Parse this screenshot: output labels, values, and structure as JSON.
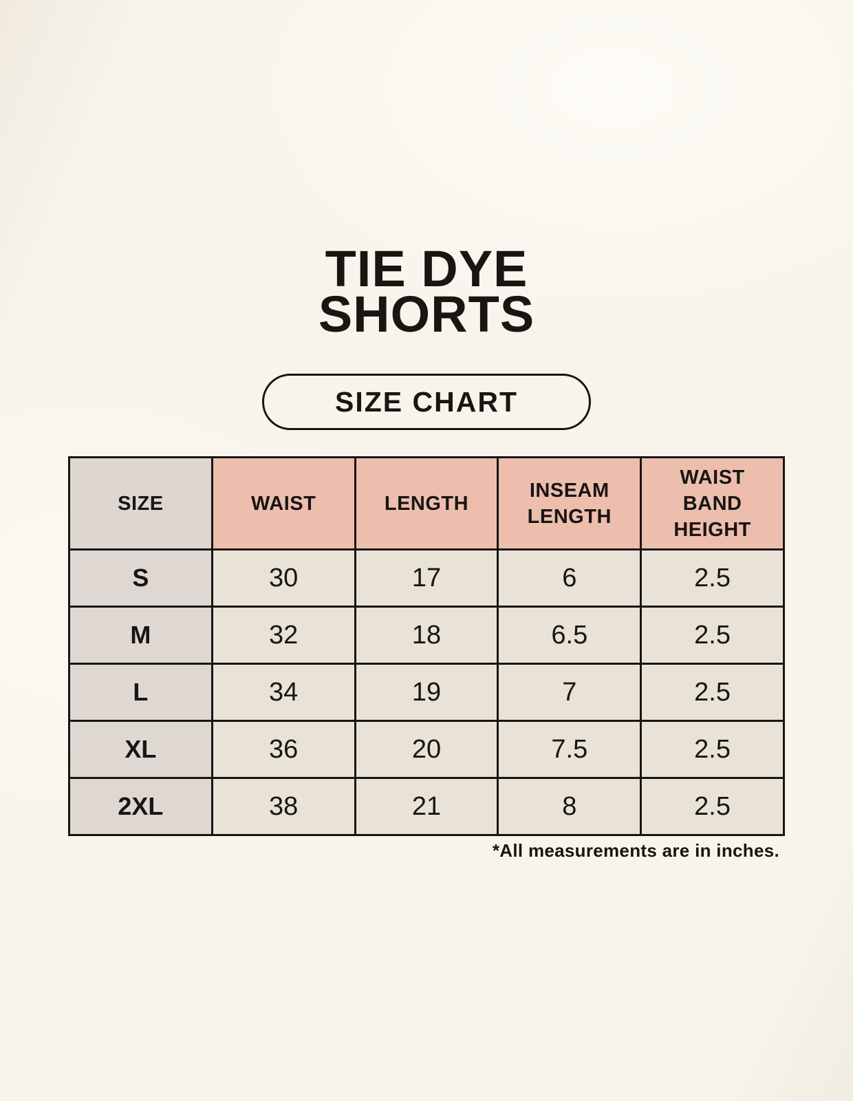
{
  "page": {
    "title_line1": "TIE DYE",
    "title_line2": "SHORTS",
    "badge_label": "SIZE CHART",
    "footnote": "*All measurements are in inches."
  },
  "table": {
    "columns": [
      "SIZE",
      "WAIST",
      "LENGTH",
      "INSEAM LENGTH",
      "WAIST BAND HEIGHT"
    ],
    "rows": [
      {
        "size": "S",
        "values": [
          "30",
          "17",
          "6",
          "2.5"
        ]
      },
      {
        "size": "M",
        "values": [
          "32",
          "18",
          "6.5",
          "2.5"
        ]
      },
      {
        "size": "L",
        "values": [
          "34",
          "19",
          "7",
          "2.5"
        ]
      },
      {
        "size": "XL",
        "values": [
          "36",
          "20",
          "7.5",
          "2.5"
        ]
      },
      {
        "size": "2XL",
        "values": [
          "38",
          "21",
          "8",
          "2.5"
        ]
      }
    ],
    "units_note": "inches"
  },
  "colors": {
    "background": "#f8f4ec",
    "header_pink": "#edbeae",
    "header_gray": "#ddd6d1",
    "cell_beige": "#e9e2d6",
    "size_col_gray": "#ded7d2",
    "border_ink": "#171411",
    "text_ink": "#181512"
  }
}
